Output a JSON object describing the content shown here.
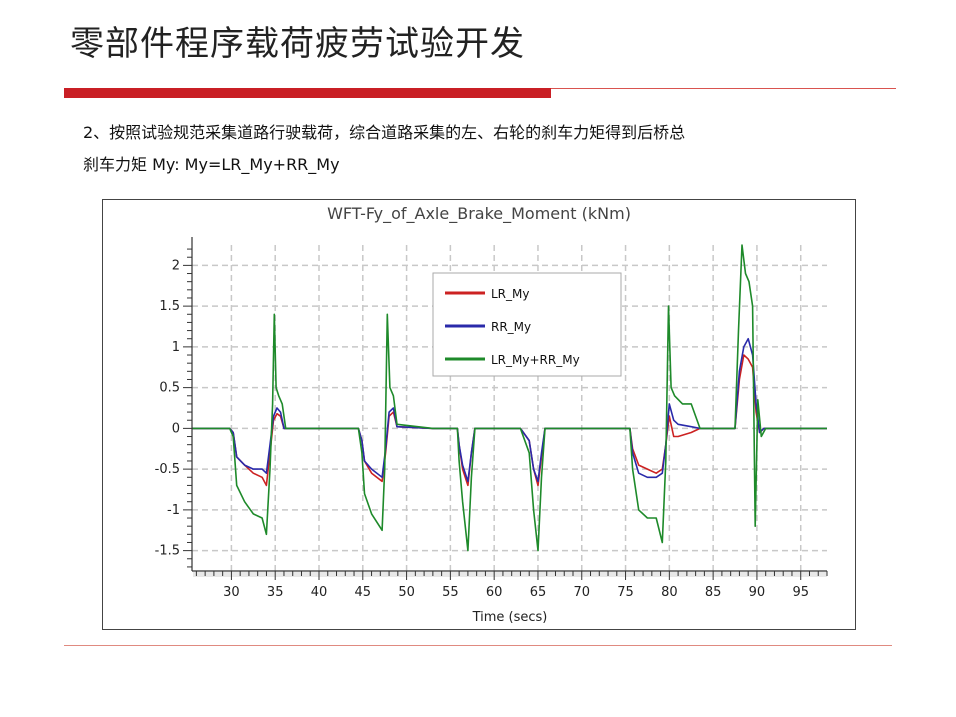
{
  "slide": {
    "title": "零部件程序载荷疲劳试验开发",
    "line1": "2、按照试验规范采集道路行驶载荷，综合道路采集的左、右轮的刹车力矩得到后桥总",
    "line2": "刹车力矩 My:    My=LR_My+RR_My",
    "accent_color": "#c91f25"
  },
  "chart_data": {
    "type": "line",
    "title": "WFT-Fy_of_Axle_Brake_Moment (kNm)",
    "xlabel": "Time (secs)",
    "ylabel": "",
    "xlim": [
      25.5,
      98
    ],
    "ylim": [
      -1.75,
      2.25
    ],
    "xticks": [
      30,
      35,
      40,
      45,
      50,
      55,
      60,
      65,
      70,
      75,
      80,
      85,
      90,
      95
    ],
    "yticks": [
      -1.5,
      -1,
      -0.5,
      0,
      0.5,
      1,
      1.5,
      2
    ],
    "grid": true,
    "legend_position": "top-center",
    "series": [
      {
        "name": "LR_My",
        "color": "#cc2222",
        "points": [
          [
            25.5,
            0
          ],
          [
            29.8,
            0
          ],
          [
            30.2,
            -0.05
          ],
          [
            30.6,
            -0.35
          ],
          [
            31.5,
            -0.45
          ],
          [
            32.5,
            -0.55
          ],
          [
            33.5,
            -0.6
          ],
          [
            34.0,
            -0.7
          ],
          [
            34.4,
            -0.3
          ],
          [
            34.8,
            0.1
          ],
          [
            35.2,
            0.18
          ],
          [
            35.6,
            0.15
          ],
          [
            36.0,
            0
          ],
          [
            39,
            0
          ],
          [
            44.5,
            0
          ],
          [
            44.9,
            -0.15
          ],
          [
            45.2,
            -0.4
          ],
          [
            46.0,
            -0.55
          ],
          [
            47.2,
            -0.65
          ],
          [
            47.6,
            -0.3
          ],
          [
            48.0,
            0.15
          ],
          [
            48.5,
            0.2
          ],
          [
            48.9,
            0.02
          ],
          [
            53,
            0
          ],
          [
            55.8,
            0
          ],
          [
            56.0,
            -0.2
          ],
          [
            56.4,
            -0.5
          ],
          [
            57.0,
            -0.7
          ],
          [
            57.4,
            -0.3
          ],
          [
            57.8,
            0
          ],
          [
            63,
            0
          ],
          [
            64.0,
            -0.15
          ],
          [
            64.5,
            -0.5
          ],
          [
            65.0,
            -0.7
          ],
          [
            65.4,
            -0.35
          ],
          [
            65.8,
            0
          ],
          [
            72,
            0
          ],
          [
            75.5,
            0
          ],
          [
            75.8,
            -0.25
          ],
          [
            76.5,
            -0.45
          ],
          [
            77.5,
            -0.5
          ],
          [
            78.5,
            -0.55
          ],
          [
            79.2,
            -0.5
          ],
          [
            79.6,
            -0.2
          ],
          [
            80.0,
            0.15
          ],
          [
            80.5,
            -0.1
          ],
          [
            81.0,
            -0.1
          ],
          [
            82.5,
            -0.05
          ],
          [
            83.5,
            0
          ],
          [
            87.5,
            0
          ],
          [
            88.0,
            0.6
          ],
          [
            88.5,
            0.9
          ],
          [
            89.0,
            0.85
          ],
          [
            89.5,
            0.75
          ],
          [
            89.9,
            0.2
          ],
          [
            90.3,
            -0.05
          ],
          [
            90.8,
            0
          ],
          [
            98,
            0
          ]
        ]
      },
      {
        "name": "RR_My",
        "color": "#2a2aaa",
        "points": [
          [
            25.5,
            0
          ],
          [
            29.8,
            0
          ],
          [
            30.2,
            -0.05
          ],
          [
            30.6,
            -0.35
          ],
          [
            31.5,
            -0.45
          ],
          [
            32.5,
            -0.5
          ],
          [
            33.5,
            -0.5
          ],
          [
            34.0,
            -0.55
          ],
          [
            34.4,
            -0.2
          ],
          [
            34.8,
            0.15
          ],
          [
            35.2,
            0.25
          ],
          [
            35.6,
            0.2
          ],
          [
            36.0,
            0
          ],
          [
            39,
            0
          ],
          [
            44.5,
            0
          ],
          [
            44.9,
            -0.15
          ],
          [
            45.2,
            -0.4
          ],
          [
            46.0,
            -0.5
          ],
          [
            47.2,
            -0.6
          ],
          [
            47.6,
            -0.25
          ],
          [
            48.0,
            0.2
          ],
          [
            48.5,
            0.25
          ],
          [
            48.9,
            0.02
          ],
          [
            53,
            0
          ],
          [
            55.8,
            0
          ],
          [
            56.0,
            -0.2
          ],
          [
            56.4,
            -0.45
          ],
          [
            57.0,
            -0.65
          ],
          [
            57.4,
            -0.3
          ],
          [
            57.8,
            0
          ],
          [
            63,
            0
          ],
          [
            64.0,
            -0.15
          ],
          [
            64.5,
            -0.5
          ],
          [
            65.0,
            -0.65
          ],
          [
            65.4,
            -0.3
          ],
          [
            65.8,
            0
          ],
          [
            72,
            0
          ],
          [
            75.5,
            0
          ],
          [
            75.8,
            -0.3
          ],
          [
            76.5,
            -0.55
          ],
          [
            77.5,
            -0.6
          ],
          [
            78.5,
            -0.6
          ],
          [
            79.2,
            -0.55
          ],
          [
            79.6,
            -0.2
          ],
          [
            80.0,
            0.3
          ],
          [
            80.5,
            0.1
          ],
          [
            81.0,
            0.05
          ],
          [
            82.5,
            0.02
          ],
          [
            83.5,
            0
          ],
          [
            87.5,
            0
          ],
          [
            88.0,
            0.7
          ],
          [
            88.5,
            1.0
          ],
          [
            89.0,
            1.1
          ],
          [
            89.5,
            0.9
          ],
          [
            89.9,
            0.3
          ],
          [
            90.3,
            -0.05
          ],
          [
            90.8,
            0
          ],
          [
            98,
            0
          ]
        ]
      },
      {
        "name": "LR_My+RR_My",
        "color": "#1e8a2a",
        "points": [
          [
            25.5,
            0
          ],
          [
            29.8,
            0
          ],
          [
            30.2,
            -0.1
          ],
          [
            30.6,
            -0.7
          ],
          [
            31.5,
            -0.9
          ],
          [
            32.5,
            -1.05
          ],
          [
            33.5,
            -1.1
          ],
          [
            34.0,
            -1.3
          ],
          [
            34.4,
            -0.5
          ],
          [
            34.7,
            0.3
          ],
          [
            34.9,
            1.4
          ],
          [
            35.1,
            0.5
          ],
          [
            35.4,
            0.4
          ],
          [
            35.8,
            0.3
          ],
          [
            36.2,
            0
          ],
          [
            39,
            0
          ],
          [
            44.5,
            0
          ],
          [
            44.9,
            -0.3
          ],
          [
            45.2,
            -0.8
          ],
          [
            46.0,
            -1.05
          ],
          [
            47.2,
            -1.25
          ],
          [
            47.5,
            -0.5
          ],
          [
            47.8,
            1.4
          ],
          [
            48.1,
            0.5
          ],
          [
            48.5,
            0.4
          ],
          [
            48.9,
            0.05
          ],
          [
            53,
            0
          ],
          [
            55.8,
            0
          ],
          [
            56.0,
            -0.4
          ],
          [
            56.4,
            -0.9
          ],
          [
            57.0,
            -1.5
          ],
          [
            57.4,
            -0.6
          ],
          [
            57.8,
            0
          ],
          [
            63,
            0
          ],
          [
            64.0,
            -0.3
          ],
          [
            64.5,
            -1.0
          ],
          [
            65.0,
            -1.5
          ],
          [
            65.4,
            -0.6
          ],
          [
            65.8,
            0
          ],
          [
            72,
            0
          ],
          [
            75.5,
            0
          ],
          [
            75.8,
            -0.5
          ],
          [
            76.5,
            -1.0
          ],
          [
            77.5,
            -1.1
          ],
          [
            78.5,
            -1.1
          ],
          [
            79.2,
            -1.4
          ],
          [
            79.6,
            -0.4
          ],
          [
            79.9,
            1.5
          ],
          [
            80.2,
            0.5
          ],
          [
            80.6,
            0.4
          ],
          [
            81.5,
            0.3
          ],
          [
            82.5,
            0.3
          ],
          [
            83.5,
            0
          ],
          [
            87.5,
            0
          ],
          [
            87.9,
            1.2
          ],
          [
            88.3,
            2.25
          ],
          [
            88.7,
            1.9
          ],
          [
            89.1,
            1.8
          ],
          [
            89.5,
            1.5
          ],
          [
            89.8,
            -1.2
          ],
          [
            90.1,
            0.35
          ],
          [
            90.5,
            -0.1
          ],
          [
            91.0,
            0
          ],
          [
            98,
            0
          ]
        ]
      }
    ]
  }
}
